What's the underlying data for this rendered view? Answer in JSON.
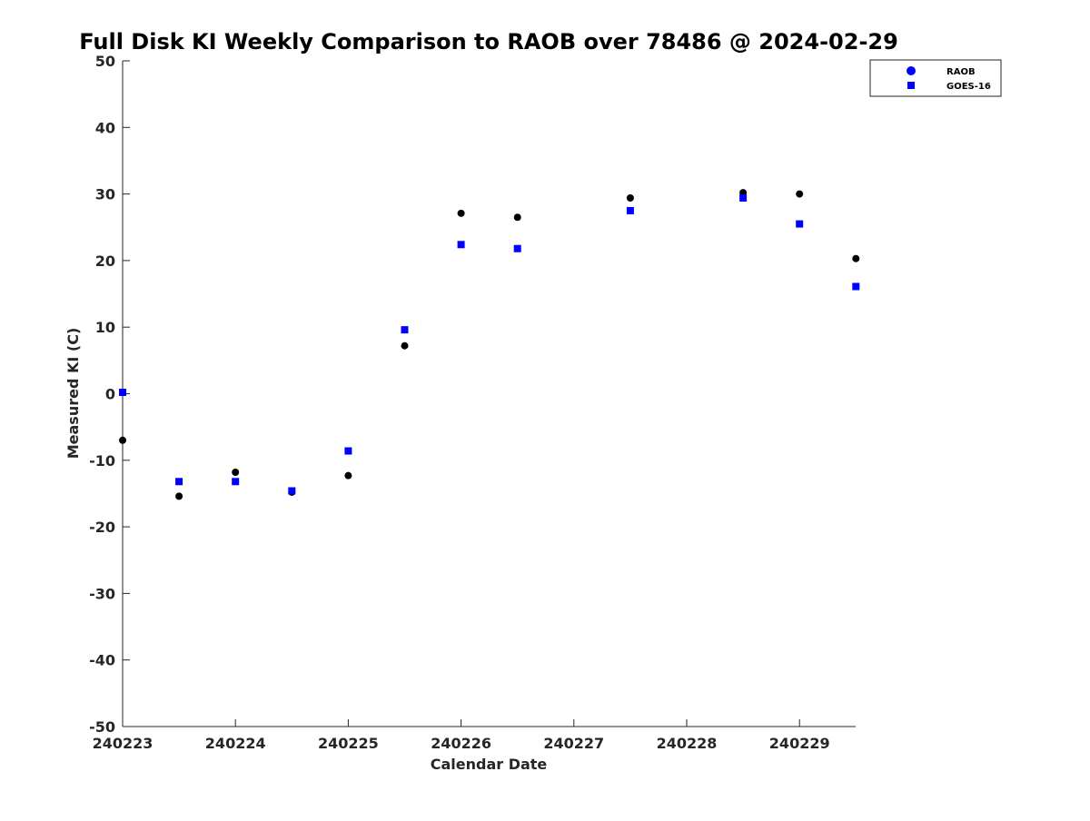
{
  "chart_data": {
    "type": "scatter",
    "title": "Full Disk KI Weekly Comparison to RAOB over 78486 @ 2024-02-29",
    "xlabel": "Calendar Date",
    "ylabel": "Measured KI (C)",
    "xlim": [
      "240223",
      "240229.5"
    ],
    "ylim": [
      -50,
      50
    ],
    "x_ticks": [
      "240223",
      "240224",
      "240225",
      "240226",
      "240227",
      "240228",
      "240229"
    ],
    "y_ticks": [
      50,
      40,
      30,
      20,
      10,
      0,
      -10,
      -20,
      -30,
      -40,
      -50
    ],
    "grid": false,
    "legend_position": "top-right",
    "series": [
      {
        "name": "RAOB",
        "marker": "circle",
        "legend_color": "#0000ff",
        "point_color": "#000000",
        "x": [
          "240223 00Z",
          "240223 12Z",
          "240224 00Z",
          "240224 12Z",
          "240225 00Z",
          "240225 12Z",
          "240226 00Z",
          "240226 12Z",
          "240227 12Z",
          "240228 12Z",
          "240229 00Z",
          "240229 12Z"
        ],
        "values": [
          -7.0,
          -15.4,
          -11.8,
          -14.8,
          -12.3,
          7.2,
          27.1,
          26.5,
          29.4,
          30.2,
          30.0,
          20.3
        ]
      },
      {
        "name": "GOES-16",
        "marker": "square",
        "legend_color": "#0000ff",
        "point_color": "#0000ff",
        "x": [
          "240223 00Z",
          "240223 12Z",
          "240224 00Z",
          "240224 12Z",
          "240225 00Z",
          "240225 12Z",
          "240226 00Z",
          "240226 12Z",
          "240227 12Z",
          "240228 12Z",
          "240229 00Z",
          "240229 12Z"
        ],
        "values": [
          0.2,
          -13.2,
          -13.2,
          -14.6,
          -8.6,
          9.6,
          22.4,
          21.8,
          27.5,
          29.4,
          25.5,
          16.1
        ]
      }
    ]
  }
}
